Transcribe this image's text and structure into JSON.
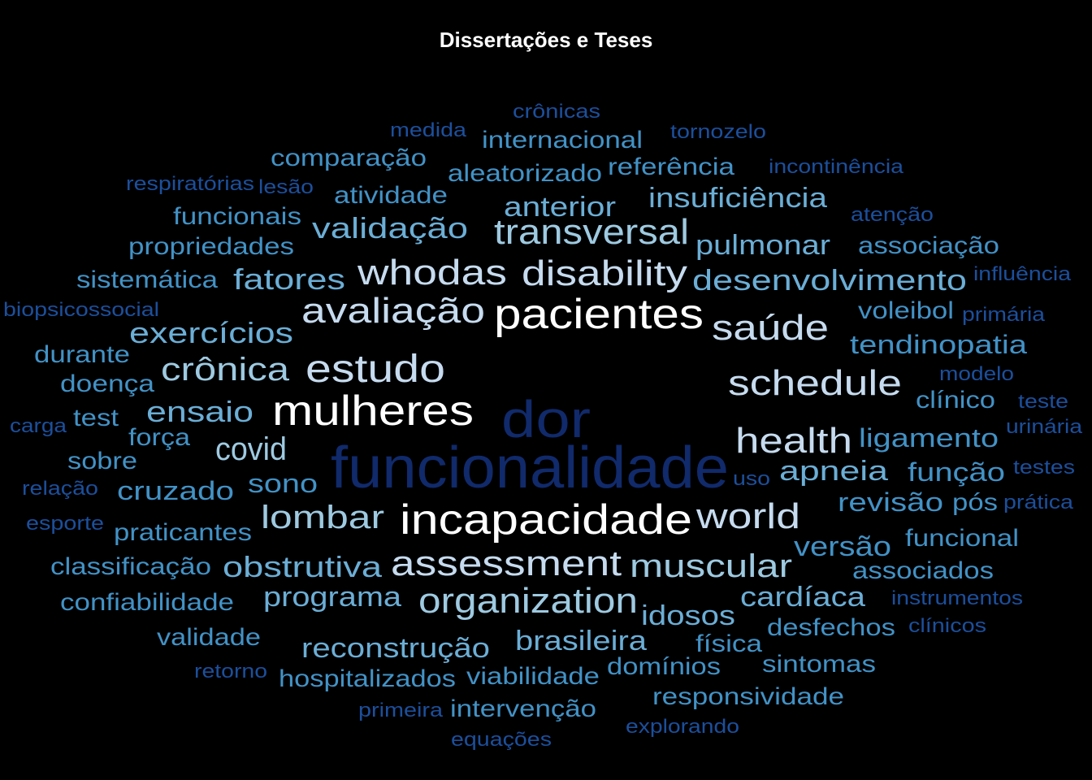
{
  "title": "Dissertações e Teses",
  "palette": {
    "background": "#000000",
    "white": "#ffffff",
    "pale_blue": "#c6dbef",
    "light_blue": "#9ecae1",
    "sky_blue": "#6baed6",
    "mid_blue": "#4292c6",
    "blue": "#2171b5",
    "deep_blue": "#1c4f9c",
    "navy": "#102a6b"
  },
  "words": [
    "dor",
    "funcionalidade",
    "incapacidade",
    "pacientes",
    "mulheres",
    "estudo",
    "avaliação",
    "whodas",
    "disability",
    "schedule",
    "health",
    "assessment",
    "organization",
    "world",
    "transversal",
    "saúde",
    "covid",
    "muscular",
    "lombar",
    "crônica",
    "ensaio",
    "obstrutiva",
    "exercícios",
    "fatores",
    "validação",
    "desenvolvimento",
    "insuficiência",
    "anterior",
    "apneia",
    "pulmonar",
    "reconstrução",
    "brasileira",
    "idosos",
    "cardíaca",
    "programa",
    "versão",
    "revisão",
    "sono",
    "cruzado",
    "tendinopatia",
    "ligamento",
    "função",
    "funcional",
    "associação",
    "internacional",
    "comparação",
    "aleatorizado",
    "referência",
    "atividade",
    "funcionais",
    "propriedades",
    "sistemática",
    "voleibol",
    "clínico",
    "durante",
    "doença",
    "test",
    "força",
    "sobre",
    "praticantes",
    "classificação",
    "confiabilidade",
    "validade",
    "hospitalizados",
    "viabilidade",
    "domínios",
    "física",
    "desfechos",
    "sintomas",
    "responsividade",
    "intervenção",
    "associados",
    "pós",
    "crônicas",
    "medida",
    "tornozelo",
    "respiratórias",
    "lesão",
    "incontinência",
    "atenção",
    "influência",
    "biopsicossocial",
    "primária",
    "modelo",
    "teste",
    "carga",
    "urinária",
    "uso",
    "testes",
    "relação",
    "prática",
    "esporte",
    "instrumentos",
    "clínicos",
    "retorno",
    "primeira",
    "explorando",
    "equações"
  ]
}
